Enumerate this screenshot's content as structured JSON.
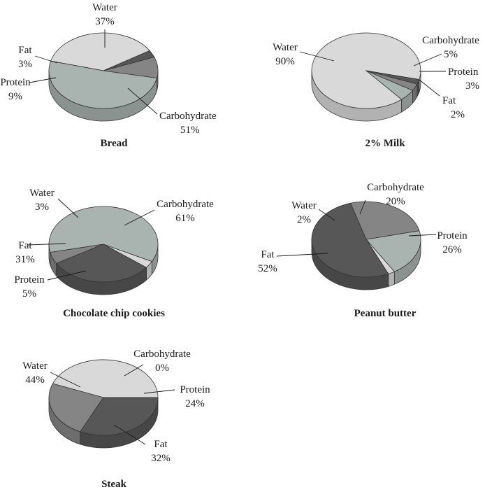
{
  "colors": {
    "Water": "#d9d9d9",
    "Carbohydrate": "#a9b3b0",
    "Protein": "#858585",
    "Fat": "#575757"
  },
  "chart_data": [
    {
      "type": "pie",
      "title": "Bread",
      "slices": [
        {
          "name": "Water",
          "label": "Water",
          "pct_text": "37%",
          "value": 37
        },
        {
          "name": "Carbohydrate",
          "label": "Carbohydrate",
          "pct_text": "51%",
          "value": 51
        },
        {
          "name": "Protein",
          "label": "Protein",
          "pct_text": "9%",
          "value": 9
        },
        {
          "name": "Fat",
          "label": "Fat",
          "pct_text": "3%",
          "value": 3
        }
      ]
    },
    {
      "type": "pie",
      "title": "2% Milk",
      "slices": [
        {
          "name": "Water",
          "label": "Water",
          "pct_text": "90%",
          "value": 90
        },
        {
          "name": "Carbohydrate",
          "label": "Carbohydrate",
          "pct_text": "5%",
          "value": 5
        },
        {
          "name": "Protein",
          "label": "Protein",
          "pct_text": "3%",
          "value": 3
        },
        {
          "name": "Fat",
          "label": "Fat",
          "pct_text": "2%",
          "value": 2
        }
      ]
    },
    {
      "type": "pie",
      "title": "Chocolate chip cookies",
      "slices": [
        {
          "name": "Water",
          "label": "Water",
          "pct_text": "3%",
          "value": 3
        },
        {
          "name": "Carbohydrate",
          "label": "Carbohydrate",
          "pct_text": "61%",
          "value": 61
        },
        {
          "name": "Protein",
          "label": "Protein",
          "pct_text": "5%",
          "value": 5
        },
        {
          "name": "Fat",
          "label": "Fat",
          "pct_text": "31%",
          "value": 31
        }
      ]
    },
    {
      "type": "pie",
      "title": "Peanut butter",
      "slices": [
        {
          "name": "Water",
          "label": "Water",
          "pct_text": "2%",
          "value": 2
        },
        {
          "name": "Carbohydrate",
          "label": "Carbohydrate",
          "pct_text": "20%",
          "value": 20
        },
        {
          "name": "Protein",
          "label": "Protein",
          "pct_text": "26%",
          "value": 26
        },
        {
          "name": "Fat",
          "label": "Fat",
          "pct_text": "52%",
          "value": 52
        }
      ]
    },
    {
      "type": "pie",
      "title": "Steak",
      "slices": [
        {
          "name": "Water",
          "label": "Water",
          "pct_text": "44%",
          "value": 44
        },
        {
          "name": "Carbohydrate",
          "label": "Carbohydrate",
          "pct_text": "0%",
          "value": 0
        },
        {
          "name": "Protein",
          "label": "Protein",
          "pct_text": "24%",
          "value": 24
        },
        {
          "name": "Fat",
          "label": "Fat",
          "pct_text": "32%",
          "value": 32
        }
      ]
    }
  ]
}
